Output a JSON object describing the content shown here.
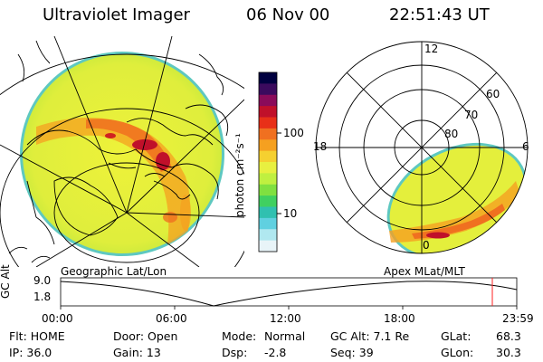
{
  "header": {
    "instrument": "Ultraviolet Imager",
    "date": "06 Nov 00",
    "time": "22:51:43 UT"
  },
  "colorbar": {
    "unit_label": "photon cm⁻²s⁻¹",
    "ticks": [
      "100",
      "10"
    ],
    "scale": "log",
    "colors": [
      "#000040",
      "#3b0a5e",
      "#8a0b5a",
      "#c0102a",
      "#e83018",
      "#f07020",
      "#f5a020",
      "#f5d030",
      "#e8f040",
      "#c0f040",
      "#80e040",
      "#40d060",
      "#30c0b0",
      "#60d0e0",
      "#b0e8f0",
      "#e8f4f8"
    ]
  },
  "left_map": {
    "label": "Geographic Lat/Lon"
  },
  "right_map": {
    "label": "Apex MLat/MLT",
    "mlt_labels": [
      "12",
      "18",
      "6",
      "0"
    ],
    "lat_labels": [
      "60",
      "70",
      "80"
    ]
  },
  "altitude_plot": {
    "ylabel": "GC Alt",
    "y_ticks": [
      "9.0",
      "1.8"
    ],
    "x_ticks": [
      "00:00",
      "06:00",
      "12:00",
      "18:00",
      "23:59"
    ]
  },
  "status": {
    "flt": "Flt: HOME",
    "ip": "IP: 36.0",
    "door": "Door: Open",
    "gain": "Gain: 13",
    "mode_label": "Mode:",
    "mode_value": "Normal",
    "dsp_label": "Dsp:",
    "dsp_value": "-2.8",
    "gc_alt": "GC Alt: 7.1 Re",
    "seq": "Seq: 39",
    "glat_label": "GLat:",
    "glat_value": "68.3",
    "glon_label": "GLon:",
    "glon_value": "30.3"
  }
}
